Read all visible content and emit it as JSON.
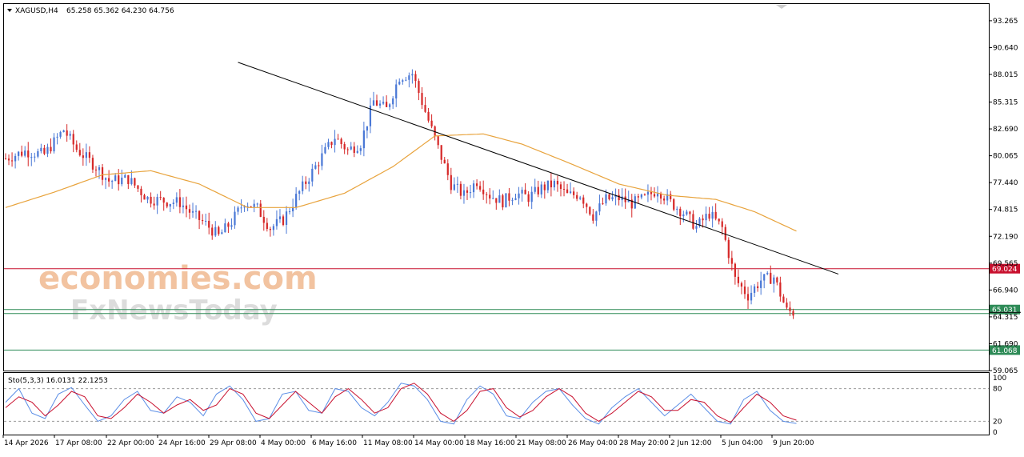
{
  "chart_data": [
    {
      "type": "candlestick",
      "header": {
        "symbol": "XAGUSD,H4",
        "ohlc": "65.258 65.362 64.230 64.756"
      },
      "y_ticks": [
        "93.265",
        "90.640",
        "88.015",
        "85.315",
        "82.690",
        "80.065",
        "77.440",
        "74.815",
        "72.190",
        "69.565",
        "66.940",
        "64.315",
        "61.690",
        "59.065"
      ],
      "ylim": [
        59.065,
        94.9
      ],
      "x_ticks": [
        "14 Apr 2026",
        "17 Apr 08:00",
        "22 Apr 00:00",
        "24 Apr 16:00",
        "29 Apr 08:00",
        "4 May 00:00",
        "6 May 16:00",
        "11 May 08:00",
        "14 May 00:00",
        "18 May 16:00",
        "21 May 08:00",
        "26 May 04:00",
        "28 May 20:00",
        "2 Jun 12:00",
        "5 Jun 04:00",
        "9 Jun 20:00"
      ],
      "horizontal_levels": [
        {
          "value": 69.024,
          "label": "69.024",
          "color": "#c8102e"
        },
        {
          "value": 65.031,
          "label": "65.031",
          "color": "#2e8b57"
        },
        {
          "value": 61.068,
          "label": "61.068",
          "color": "#2e8b57"
        }
      ],
      "current_price": 64.756,
      "trendline": {
        "from": [
          72,
          89.2
        ],
        "to": [
          258,
          68.5
        ],
        "color": "#000000"
      },
      "moving_average": {
        "color": "#e8a33c"
      },
      "colors": {
        "bull": "#4a78d6",
        "bear": "#d62828"
      },
      "close_path": [
        [
          0,
          79.8
        ],
        [
          6,
          80.5
        ],
        [
          12,
          80.2
        ],
        [
          18,
          82.6
        ],
        [
          22,
          80.7
        ],
        [
          28,
          79.0
        ],
        [
          32,
          77.6
        ],
        [
          38,
          77.8
        ],
        [
          44,
          75.9
        ],
        [
          50,
          75.6
        ],
        [
          54,
          75.5
        ],
        [
          58,
          74.3
        ],
        [
          62,
          73.4
        ],
        [
          66,
          72.2
        ],
        [
          70,
          73.6
        ],
        [
          74,
          75.6
        ],
        [
          78,
          74.9
        ],
        [
          82,
          73.0
        ],
        [
          86,
          73.8
        ],
        [
          90,
          76.0
        ],
        [
          94,
          78.0
        ],
        [
          98,
          80.0
        ],
        [
          102,
          81.9
        ],
        [
          106,
          80.6
        ],
        [
          110,
          81.3
        ],
        [
          114,
          85.4
        ],
        [
          118,
          84.6
        ],
        [
          122,
          87.8
        ],
        [
          126,
          88.1
        ],
        [
          130,
          84.4
        ],
        [
          134,
          80.8
        ],
        [
          138,
          77.3
        ],
        [
          142,
          76.2
        ],
        [
          146,
          77.6
        ],
        [
          150,
          76.2
        ],
        [
          154,
          75.6
        ],
        [
          158,
          76.4
        ],
        [
          162,
          76.0
        ],
        [
          166,
          76.9
        ],
        [
          170,
          77.3
        ],
        [
          174,
          76.2
        ],
        [
          178,
          76.3
        ],
        [
          182,
          74.2
        ],
        [
          186,
          75.8
        ],
        [
          190,
          75.9
        ],
        [
          194,
          75.4
        ],
        [
          198,
          75.9
        ],
        [
          202,
          76.8
        ],
        [
          206,
          75.5
        ],
        [
          210,
          74.5
        ],
        [
          214,
          73.1
        ],
        [
          218,
          74.4
        ],
        [
          222,
          73.0
        ],
        [
          226,
          68.0
        ],
        [
          230,
          66.4
        ],
        [
          234,
          67.9
        ],
        [
          238,
          68.2
        ],
        [
          242,
          64.9
        ],
        [
          244,
          64.756
        ]
      ],
      "ma_path": [
        [
          0,
          75.0
        ],
        [
          15,
          76.5
        ],
        [
          30,
          78.2
        ],
        [
          45,
          78.6
        ],
        [
          60,
          77.3
        ],
        [
          75,
          75.0
        ],
        [
          90,
          75.0
        ],
        [
          105,
          76.4
        ],
        [
          120,
          79.0
        ],
        [
          133,
          82.0
        ],
        [
          148,
          82.2
        ],
        [
          160,
          81.2
        ],
        [
          175,
          79.3
        ],
        [
          190,
          77.3
        ],
        [
          205,
          76.2
        ],
        [
          220,
          75.8
        ],
        [
          232,
          74.6
        ],
        [
          245,
          72.7
        ]
      ]
    },
    {
      "type": "line",
      "title": "Sto(5,3,3) 16.0131 22.1253",
      "y_ticks": [
        "100",
        "80",
        "20",
        "0"
      ],
      "ylim": [
        0,
        100
      ],
      "levels": [
        80,
        20
      ],
      "series": [
        {
          "color": "#5b8ee6",
          "values": [
            55,
            80,
            35,
            25,
            70,
            82,
            50,
            20,
            30,
            60,
            75,
            40,
            35,
            65,
            55,
            30,
            70,
            85,
            60,
            20,
            25,
            70,
            75,
            40,
            35,
            80,
            75,
            45,
            30,
            55,
            90,
            85,
            60,
            20,
            15,
            60,
            85,
            70,
            30,
            25,
            55,
            75,
            80,
            50,
            25,
            15,
            45,
            65,
            80,
            55,
            30,
            50,
            70,
            45,
            20,
            15,
            60,
            75,
            40,
            20,
            16
          ]
        },
        {
          "color": "#c8102e",
          "values": [
            45,
            65,
            55,
            30,
            50,
            75,
            65,
            30,
            25,
            45,
            70,
            55,
            35,
            50,
            60,
            40,
            50,
            80,
            70,
            35,
            25,
            50,
            75,
            55,
            35,
            65,
            80,
            60,
            35,
            45,
            80,
            90,
            70,
            35,
            20,
            40,
            75,
            80,
            45,
            28,
            40,
            65,
            80,
            65,
            35,
            20,
            35,
            55,
            75,
            65,
            40,
            40,
            60,
            55,
            30,
            18,
            45,
            70,
            55,
            30,
            22
          ]
        }
      ]
    }
  ],
  "watermark": {
    "line1": "economies.com",
    "line2": "FxNewsToday"
  }
}
